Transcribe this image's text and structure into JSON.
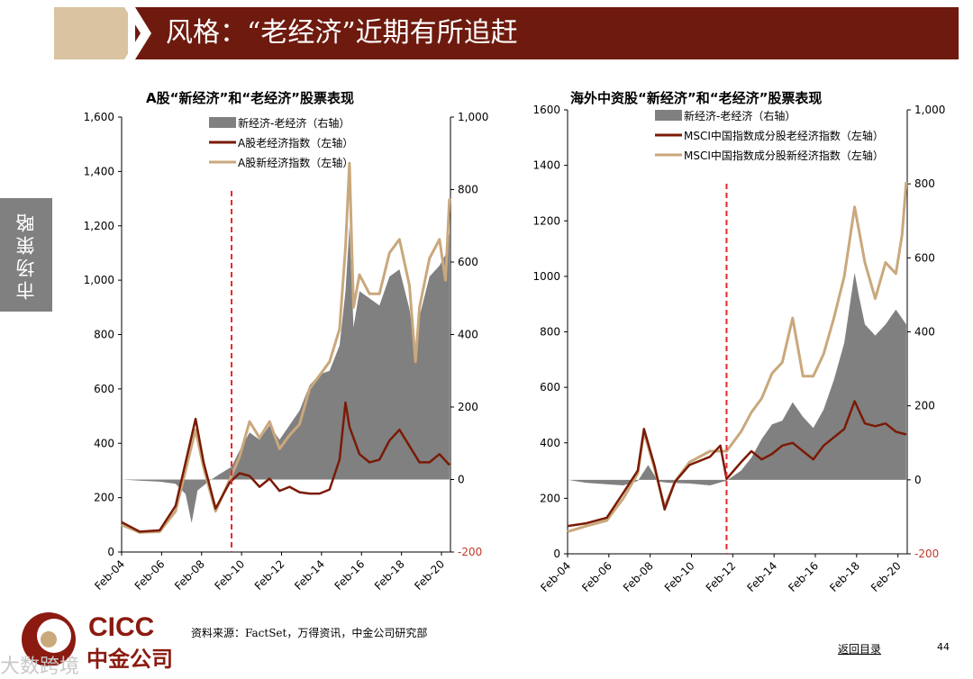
{
  "header": {
    "title": "风格：“老经济”近期有所追赶"
  },
  "side_tab": {
    "label": "市场策略"
  },
  "source": "资料来源：FactSet，万得资讯，中金公司研究部",
  "back_link": "返回目录",
  "page_number": "44",
  "logo": {
    "en": "CICC",
    "cn": "中金公司"
  },
  "watermark": "大数跨境",
  "colors": {
    "header": "#6e1a0e",
    "header_accent": "#d9c3a0",
    "old_line": "#7a1a05",
    "new_line": "#c9a87c",
    "spread_area": "#808080",
    "marker": "#e8282b",
    "right_axis": "#c0392b"
  },
  "chart_data": [
    {
      "type": "line",
      "title": "A股“新经济”和“老经济”股票表现",
      "x": [
        "Feb-04",
        "Feb-06",
        "Feb-08",
        "Feb-10",
        "Feb-12",
        "Feb-14",
        "Feb-16",
        "Feb-18",
        "Feb-20"
      ],
      "y_left": {
        "ticks": [
          "0",
          "200",
          "400",
          "600",
          "800",
          "1,000",
          "1,200",
          "1,400",
          "1,600"
        ],
        "range": [
          0,
          1600
        ]
      },
      "y_right": {
        "ticks": [
          "-200",
          "0",
          "200",
          "400",
          "600",
          "800",
          "1,000"
        ],
        "range": [
          -200,
          1000
        ]
      },
      "marker_x": 2009.6,
      "series": [
        {
          "name": "新经济-老经济（右轴）",
          "kind": "area",
          "axis": "right",
          "points": [
            [
              2004.1,
              0
            ],
            [
              2005,
              -3
            ],
            [
              2006,
              -6
            ],
            [
              2006.8,
              -12
            ],
            [
              2007.3,
              -40
            ],
            [
              2007.6,
              -120
            ],
            [
              2007.9,
              -30
            ],
            [
              2008.5,
              -3
            ],
            [
              2009.0,
              15
            ],
            [
              2009.6,
              35
            ],
            [
              2010.0,
              80
            ],
            [
              2010.5,
              130
            ],
            [
              2011.0,
              110
            ],
            [
              2011.5,
              150
            ],
            [
              2012.0,
              110
            ],
            [
              2012.5,
              150
            ],
            [
              2013.0,
              190
            ],
            [
              2013.5,
              260
            ],
            [
              2014.0,
              290
            ],
            [
              2014.5,
              300
            ],
            [
              2015.0,
              370
            ],
            [
              2015.3,
              520
            ],
            [
              2015.5,
              700
            ],
            [
              2015.7,
              420
            ],
            [
              2016.0,
              520
            ],
            [
              2016.5,
              500
            ],
            [
              2017.0,
              480
            ],
            [
              2017.5,
              560
            ],
            [
              2018.0,
              580
            ],
            [
              2018.5,
              470
            ],
            [
              2018.8,
              360
            ],
            [
              2019.0,
              450
            ],
            [
              2019.5,
              560
            ],
            [
              2020.0,
              590
            ],
            [
              2020.3,
              620
            ],
            [
              2020.5,
              680
            ]
          ]
        },
        {
          "name": "A股老经济指数（左轴）",
          "kind": "line",
          "axis": "left",
          "points": [
            [
              2004.1,
              110
            ],
            [
              2005,
              75
            ],
            [
              2006,
              80
            ],
            [
              2006.8,
              170
            ],
            [
              2007.3,
              330
            ],
            [
              2007.8,
              490
            ],
            [
              2008.2,
              330
            ],
            [
              2008.8,
              160
            ],
            [
              2009.5,
              255
            ],
            [
              2010.0,
              290
            ],
            [
              2010.5,
              280
            ],
            [
              2011.0,
              240
            ],
            [
              2011.5,
              270
            ],
            [
              2012.0,
              225
            ],
            [
              2012.5,
              240
            ],
            [
              2013.0,
              220
            ],
            [
              2013.5,
              215
            ],
            [
              2014.0,
              215
            ],
            [
              2014.5,
              230
            ],
            [
              2015.0,
              340
            ],
            [
              2015.3,
              550
            ],
            [
              2015.5,
              460
            ],
            [
              2016.0,
              360
            ],
            [
              2016.5,
              330
            ],
            [
              2017.0,
              340
            ],
            [
              2017.5,
              410
            ],
            [
              2018.0,
              450
            ],
            [
              2018.5,
              390
            ],
            [
              2019.0,
              330
            ],
            [
              2019.5,
              330
            ],
            [
              2020.0,
              360
            ],
            [
              2020.5,
              320
            ]
          ]
        },
        {
          "name": "A股新经济指数（左轴）",
          "kind": "line",
          "axis": "left",
          "points": [
            [
              2004.1,
              100
            ],
            [
              2005,
              72
            ],
            [
              2006,
              75
            ],
            [
              2006.8,
              150
            ],
            [
              2007.3,
              300
            ],
            [
              2007.8,
              450
            ],
            [
              2008.2,
              310
            ],
            [
              2008.8,
              150
            ],
            [
              2009.5,
              265
            ],
            [
              2010.0,
              350
            ],
            [
              2010.5,
              480
            ],
            [
              2011.0,
              420
            ],
            [
              2011.5,
              480
            ],
            [
              2012.0,
              380
            ],
            [
              2012.5,
              430
            ],
            [
              2013.0,
              470
            ],
            [
              2013.5,
              600
            ],
            [
              2014.0,
              650
            ],
            [
              2014.5,
              700
            ],
            [
              2015.0,
              820
            ],
            [
              2015.3,
              1120
            ],
            [
              2015.5,
              1430
            ],
            [
              2015.7,
              900
            ],
            [
              2016.0,
              1020
            ],
            [
              2016.5,
              950
            ],
            [
              2017.0,
              950
            ],
            [
              2017.5,
              1100
            ],
            [
              2018.0,
              1150
            ],
            [
              2018.5,
              980
            ],
            [
              2018.8,
              700
            ],
            [
              2019.0,
              900
            ],
            [
              2019.5,
              1080
            ],
            [
              2020.0,
              1150
            ],
            [
              2020.3,
              1000
            ],
            [
              2020.5,
              1300
            ]
          ]
        }
      ]
    },
    {
      "type": "line",
      "title": "海外中资股“新经济”和“老经济”股票表现",
      "x": [
        "Feb-04",
        "Feb-06",
        "Feb-08",
        "Feb-10",
        "Feb-12",
        "Feb-14",
        "Feb-16",
        "Feb-18",
        "Feb-20"
      ],
      "y_left": {
        "ticks": [
          "0",
          "200",
          "400",
          "600",
          "800",
          "1000",
          "1200",
          "1400",
          "1600"
        ],
        "range": [
          0,
          1600
        ]
      },
      "y_right": {
        "ticks": [
          "-200",
          "0",
          "200",
          "400",
          "600",
          "800",
          "1,000"
        ],
        "range": [
          -200,
          1000
        ]
      },
      "marker_x": 2011.8,
      "series": [
        {
          "name": "新经济-老经济（右轴）",
          "kind": "area",
          "axis": "right",
          "points": [
            [
              2004.1,
              0
            ],
            [
              2005,
              -8
            ],
            [
              2006,
              -12
            ],
            [
              2006.8,
              -15
            ],
            [
              2007.5,
              -3
            ],
            [
              2008,
              40
            ],
            [
              2008.5,
              -5
            ],
            [
              2009,
              -8
            ],
            [
              2010,
              -10
            ],
            [
              2011,
              -15
            ],
            [
              2011.8,
              -2
            ],
            [
              2012.5,
              25
            ],
            [
              2013,
              60
            ],
            [
              2013.5,
              110
            ],
            [
              2014,
              150
            ],
            [
              2014.5,
              160
            ],
            [
              2015,
              210
            ],
            [
              2015.5,
              170
            ],
            [
              2016,
              140
            ],
            [
              2016.5,
              190
            ],
            [
              2017,
              270
            ],
            [
              2017.5,
              370
            ],
            [
              2018,
              560
            ],
            [
              2018.2,
              500
            ],
            [
              2018.5,
              420
            ],
            [
              2019,
              390
            ],
            [
              2019.5,
              420
            ],
            [
              2020,
              460
            ],
            [
              2020.5,
              420
            ]
          ]
        },
        {
          "name": "MSCI中国指数成分股老经济指数（左轴）",
          "kind": "line",
          "axis": "left",
          "points": [
            [
              2004.1,
              100
            ],
            [
              2005,
              110
            ],
            [
              2006,
              130
            ],
            [
              2006.8,
              220
            ],
            [
              2007.5,
              300
            ],
            [
              2007.8,
              450
            ],
            [
              2008.3,
              320
            ],
            [
              2008.8,
              160
            ],
            [
              2009.3,
              260
            ],
            [
              2010,
              320
            ],
            [
              2011,
              350
            ],
            [
              2011.5,
              390
            ],
            [
              2011.8,
              270
            ],
            [
              2012.5,
              330
            ],
            [
              2013,
              370
            ],
            [
              2013.5,
              340
            ],
            [
              2014,
              360
            ],
            [
              2014.5,
              390
            ],
            [
              2015,
              400
            ],
            [
              2015.5,
              370
            ],
            [
              2016,
              340
            ],
            [
              2016.5,
              390
            ],
            [
              2017,
              420
            ],
            [
              2017.5,
              450
            ],
            [
              2018,
              550
            ],
            [
              2018.5,
              470
            ],
            [
              2019,
              460
            ],
            [
              2019.5,
              470
            ],
            [
              2020,
              440
            ],
            [
              2020.5,
              430
            ]
          ]
        },
        {
          "name": "MSCI中国指数成分股新经济指数（左轴）",
          "kind": "line",
          "axis": "left",
          "points": [
            [
              2004.1,
              80
            ],
            [
              2005,
              100
            ],
            [
              2006,
              120
            ],
            [
              2006.8,
              200
            ],
            [
              2007.5,
              290
            ],
            [
              2007.8,
              440
            ],
            [
              2008.3,
              310
            ],
            [
              2008.8,
              170
            ],
            [
              2009.3,
              260
            ],
            [
              2010,
              330
            ],
            [
              2011,
              370
            ],
            [
              2011.8,
              370
            ],
            [
              2012.5,
              440
            ],
            [
              2013,
              510
            ],
            [
              2013.5,
              560
            ],
            [
              2014,
              650
            ],
            [
              2014.5,
              690
            ],
            [
              2015,
              850
            ],
            [
              2015.5,
              640
            ],
            [
              2016,
              640
            ],
            [
              2016.5,
              720
            ],
            [
              2017,
              850
            ],
            [
              2017.5,
              1000
            ],
            [
              2018,
              1250
            ],
            [
              2018.5,
              1050
            ],
            [
              2019,
              920
            ],
            [
              2019.5,
              1050
            ],
            [
              2020,
              1010
            ],
            [
              2020.3,
              1150
            ],
            [
              2020.5,
              1340
            ]
          ]
        }
      ]
    }
  ]
}
